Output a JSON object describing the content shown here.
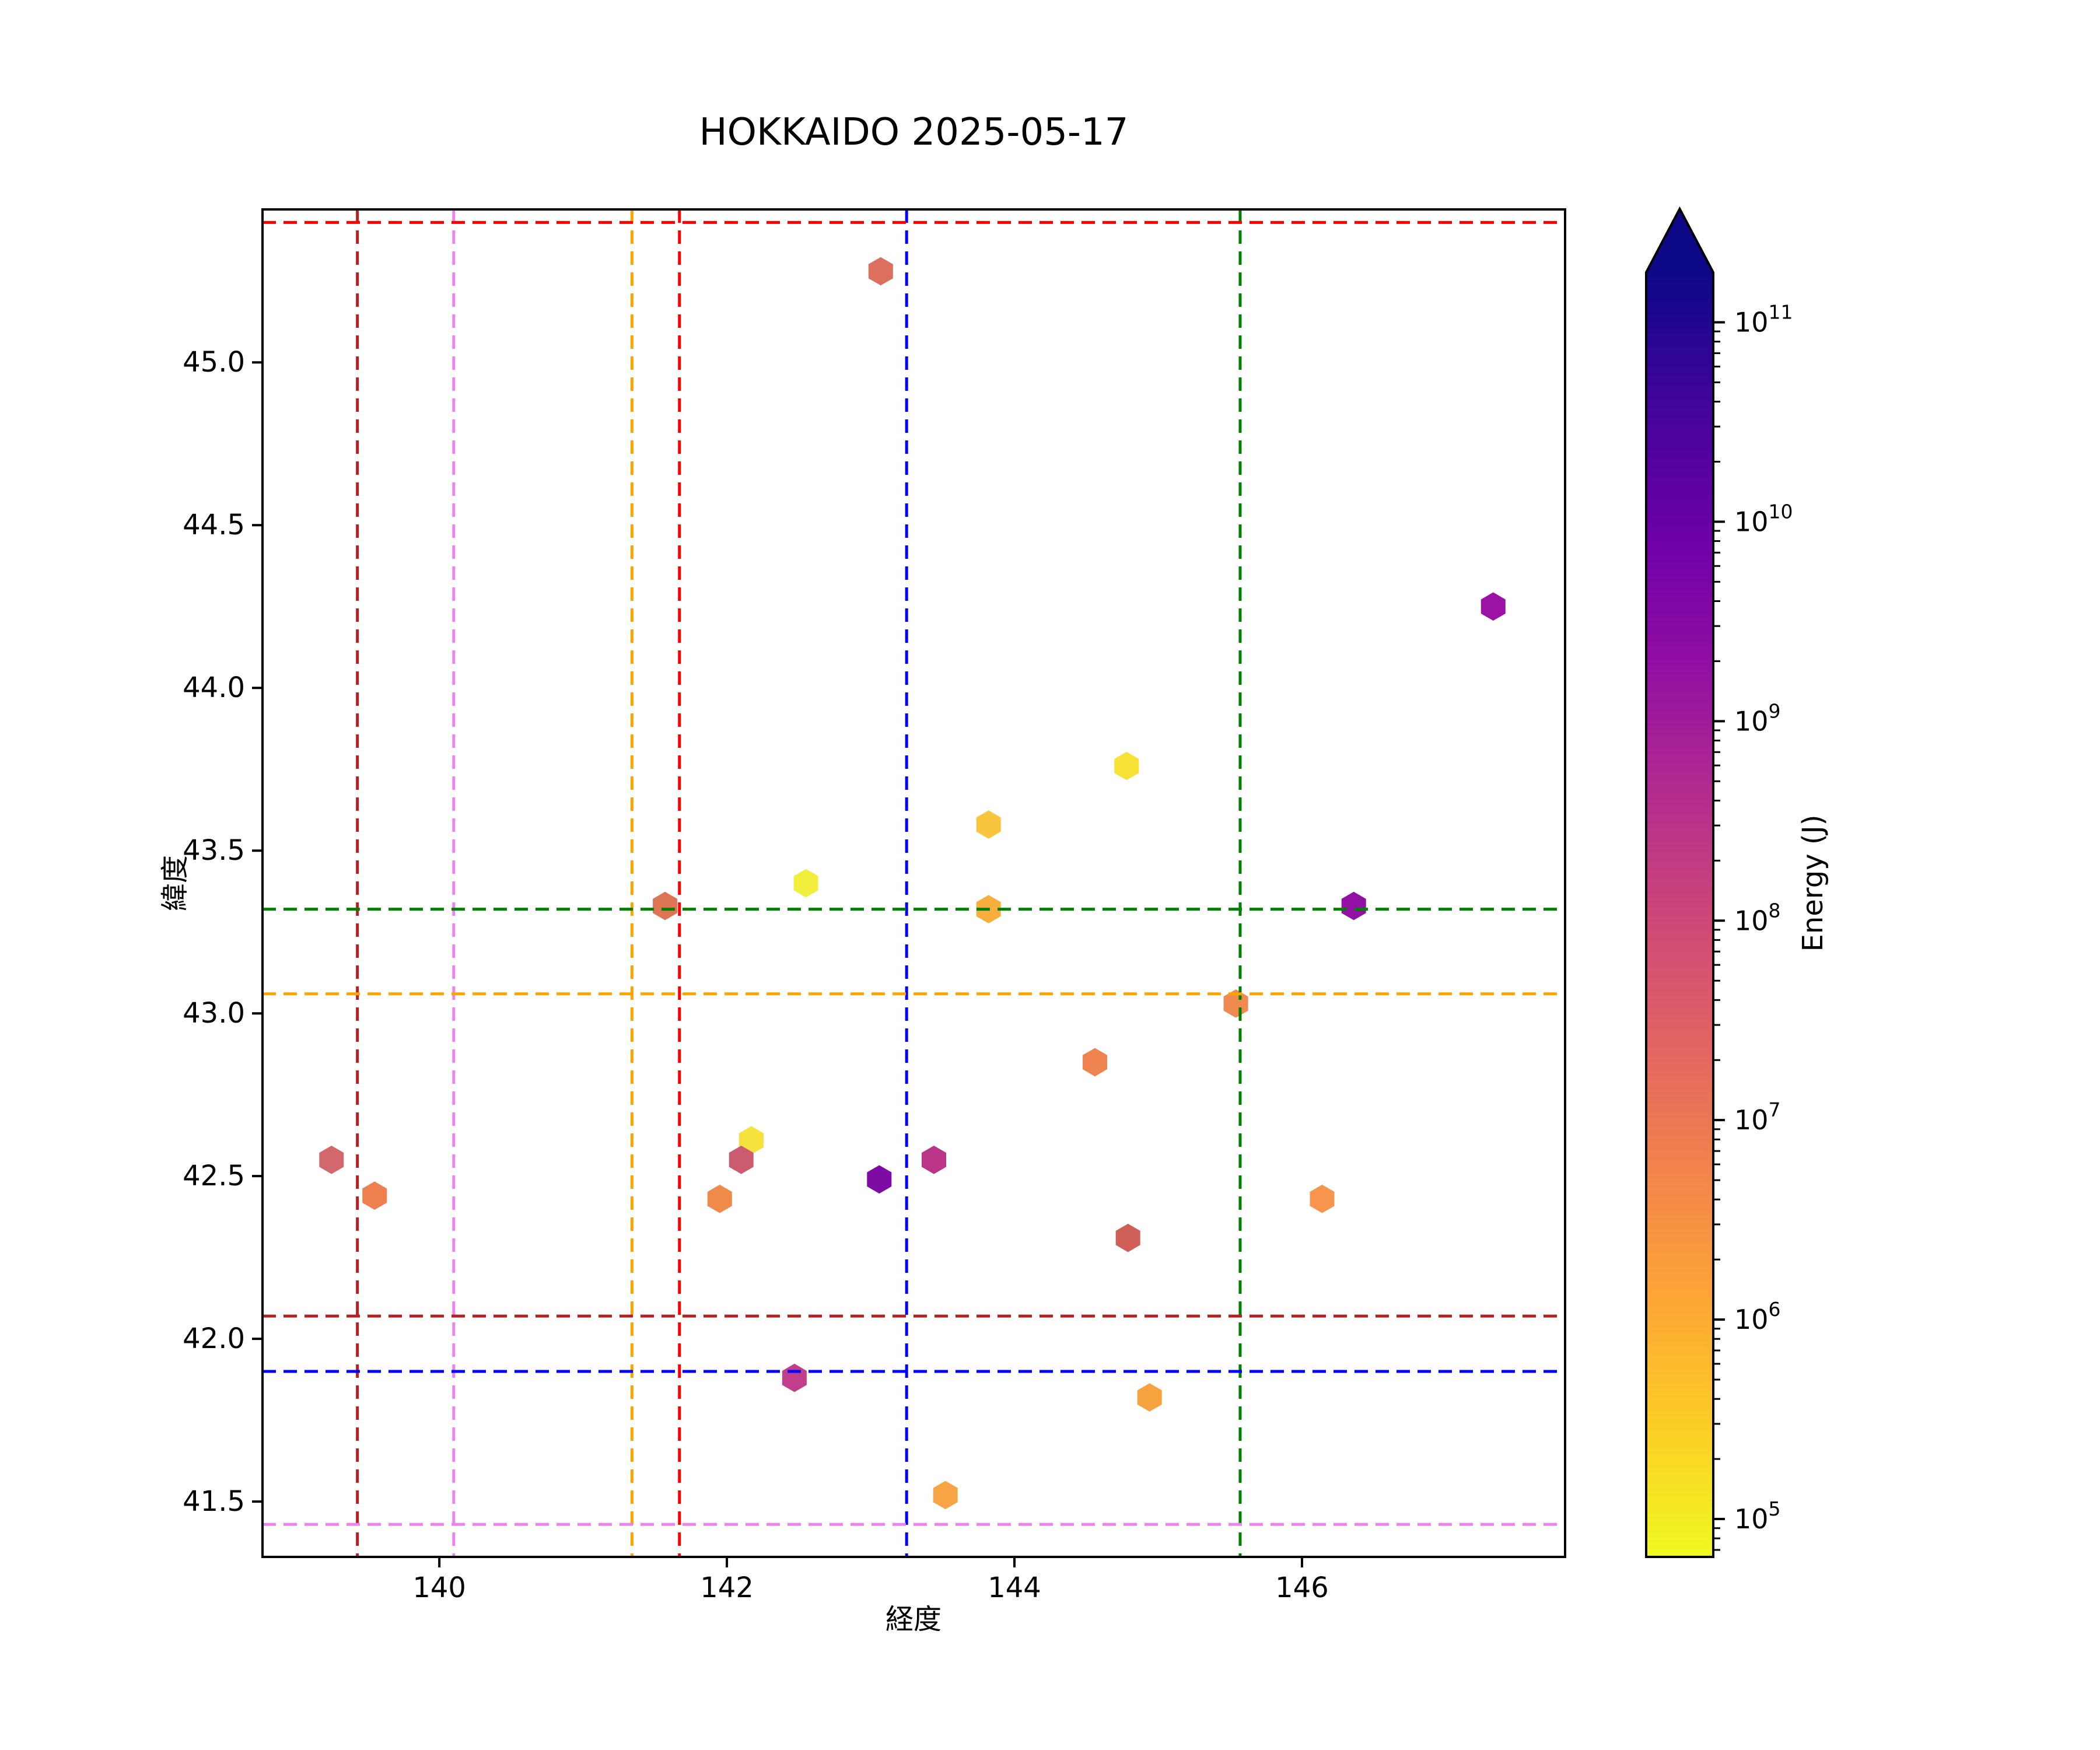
{
  "title": "HOKKAIDO 2025-05-17",
  "axes": {
    "xlabel": "経度",
    "ylabel": "緯度",
    "xticks": [
      140,
      142,
      144,
      146
    ],
    "yticks": [
      "45.0",
      "44.5",
      "44.0",
      "43.5",
      "43.0",
      "42.5",
      "42.0",
      "41.5"
    ],
    "xlim": [
      138.77,
      147.83
    ],
    "ylim": [
      41.33,
      45.47
    ],
    "grid": false
  },
  "colorbar": {
    "label": "Energy (J)",
    "scale": "log",
    "tick_exponents": [
      5,
      6,
      7,
      8,
      9,
      10,
      11
    ],
    "tick_labels": [
      "10^5",
      "10^6",
      "10^7",
      "10^8",
      "10^9",
      "10^10",
      "10^11"
    ],
    "range_exponents": [
      4.81,
      11.25
    ],
    "extend": "arrow-top",
    "gradient_top_to_bottom": [
      "#0d0887",
      "#41049d",
      "#6a00a8",
      "#8f0da4",
      "#b12a90",
      "#cc4778",
      "#e16462",
      "#f2844b",
      "#fca636",
      "#fcce25",
      "#f0f921"
    ]
  },
  "guide_lines": {
    "vertical": [
      {
        "color": "#b22222",
        "lon": 139.43
      },
      {
        "color": "#ee82ee",
        "lon": 140.1
      },
      {
        "color": "#ffa500",
        "lon": 141.34
      },
      {
        "color": "#ff0000",
        "lon": 141.67
      },
      {
        "color": "#0000ff",
        "lon": 143.25
      },
      {
        "color": "#008000",
        "lon": 145.57
      }
    ],
    "horizontal": [
      {
        "color": "#ff0000",
        "lat": 45.43
      },
      {
        "color": "#008000",
        "lat": 43.32
      },
      {
        "color": "#ffa500",
        "lat": 43.06
      },
      {
        "color": "#b22222",
        "lat": 42.07
      },
      {
        "color": "#0000ff",
        "lat": 41.9
      },
      {
        "color": "#ee82ee",
        "lat": 41.43
      }
    ]
  },
  "chart_data": {
    "type": "scatter",
    "marker": "hexagon",
    "title": "HOKKAIDO 2025-05-17",
    "xlabel": "経度",
    "ylabel": "緯度",
    "color_label": "Energy (J)",
    "points": [
      {
        "lon": 143.07,
        "lat": 45.28,
        "energy_j": 12000000.0,
        "color": "#dd6f5e"
      },
      {
        "lon": 147.33,
        "lat": 44.25,
        "energy_j": 1000000000.0,
        "color": "#9b12a5"
      },
      {
        "lon": 144.78,
        "lat": 43.76,
        "energy_j": 120000.0,
        "color": "#f7e235"
      },
      {
        "lon": 143.82,
        "lat": 43.58,
        "energy_j": 300000.0,
        "color": "#f9c53f"
      },
      {
        "lon": 142.55,
        "lat": 43.4,
        "energy_j": 80000.0,
        "color": "#f2ee3c"
      },
      {
        "lon": 141.57,
        "lat": 43.33,
        "energy_j": 9000000.0,
        "color": "#dd7454"
      },
      {
        "lon": 143.82,
        "lat": 43.32,
        "energy_j": 600000.0,
        "color": "#f7ae3c"
      },
      {
        "lon": 146.36,
        "lat": 43.33,
        "energy_j": 1800000000.0,
        "color": "#9210a3"
      },
      {
        "lon": 145.54,
        "lat": 43.03,
        "energy_j": 3500000.0,
        "color": "#ef8a50"
      },
      {
        "lon": 144.56,
        "lat": 42.85,
        "energy_j": 4000000.0,
        "color": "#ee8350"
      },
      {
        "lon": 142.17,
        "lat": 42.61,
        "energy_j": 140000.0,
        "color": "#f5e23c"
      },
      {
        "lon": 142.1,
        "lat": 42.55,
        "energy_j": 55000000.0,
        "color": "#cb5b6e"
      },
      {
        "lon": 143.44,
        "lat": 42.55,
        "energy_j": 400000000.0,
        "color": "#ba3488"
      },
      {
        "lon": 139.25,
        "lat": 42.55,
        "energy_j": 35000000.0,
        "color": "#d2686e"
      },
      {
        "lon": 143.06,
        "lat": 42.49,
        "energy_j": 8000000000.0,
        "color": "#7f0ba5"
      },
      {
        "lon": 139.55,
        "lat": 42.44,
        "energy_j": 4500000.0,
        "color": "#ee8050"
      },
      {
        "lon": 141.95,
        "lat": 42.43,
        "energy_j": 3000000.0,
        "color": "#f08a4b"
      },
      {
        "lon": 146.14,
        "lat": 42.43,
        "energy_j": 2000000.0,
        "color": "#f7944d"
      },
      {
        "lon": 144.79,
        "lat": 42.31,
        "energy_j": 25000000.0,
        "color": "#d05f58"
      },
      {
        "lon": 142.47,
        "lat": 41.88,
        "energy_j": 300000000.0,
        "color": "#c23e8a"
      },
      {
        "lon": 144.94,
        "lat": 41.82,
        "energy_j": 1200000.0,
        "color": "#f6a33f"
      },
      {
        "lon": 143.52,
        "lat": 41.52,
        "energy_j": 1200000.0,
        "color": "#f8a344"
      }
    ]
  }
}
